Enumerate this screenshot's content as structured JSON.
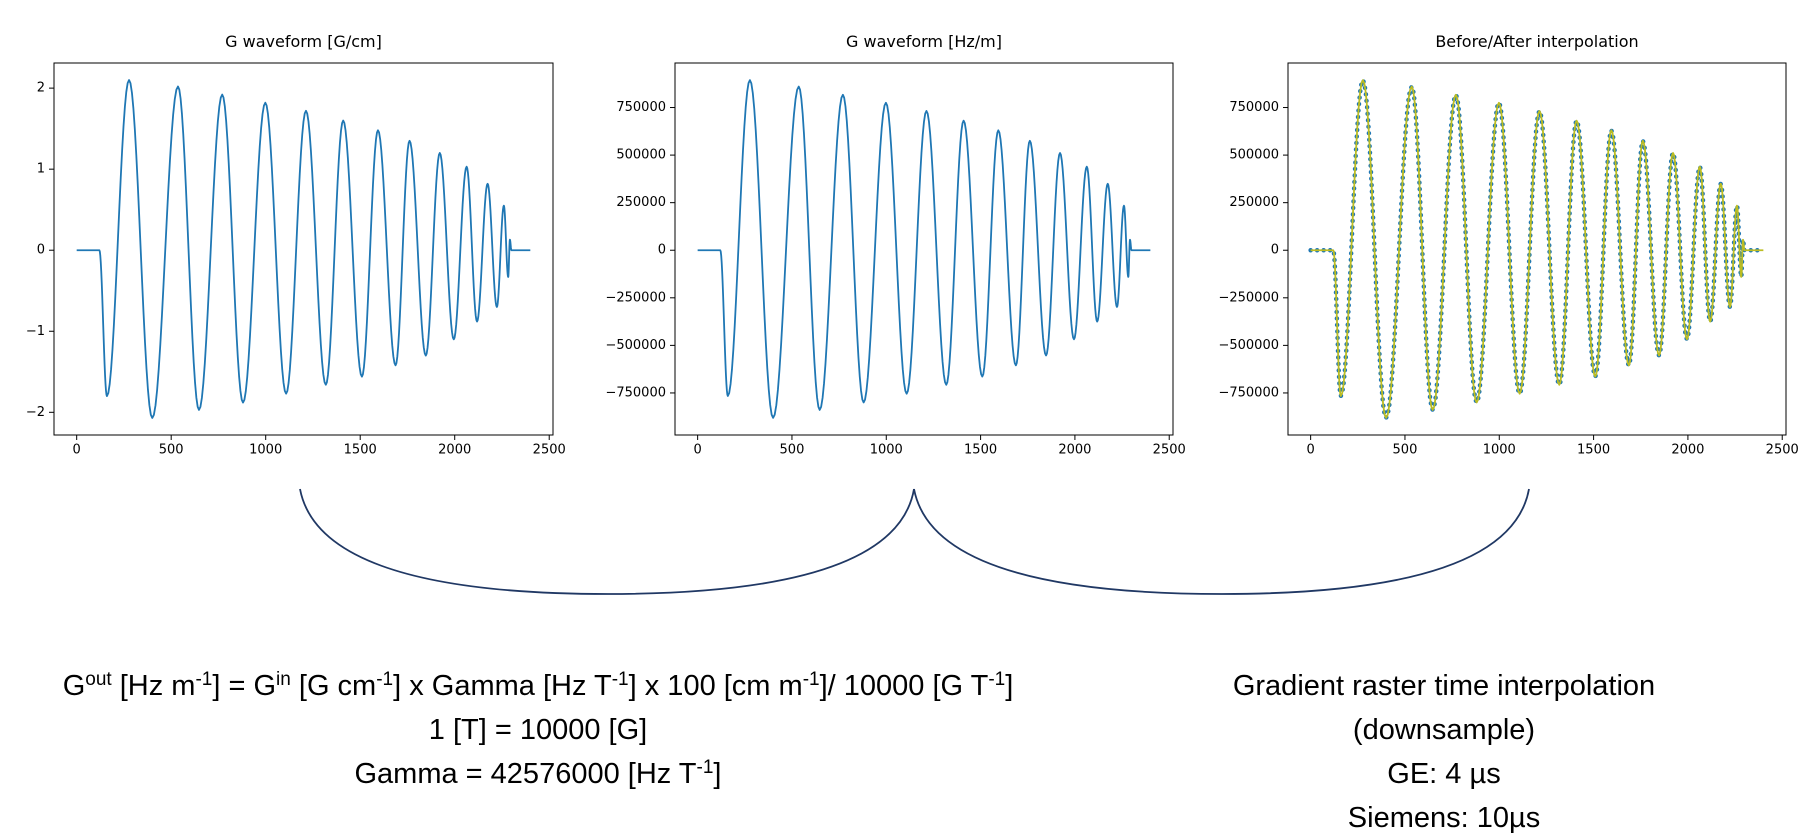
{
  "chart_data": [
    {
      "type": "line",
      "title": "G waveform [G/cm]",
      "color": "#1f77b4",
      "x": [
        0,
        120,
        160,
        277,
        400,
        536,
        647,
        770,
        880,
        998,
        1108,
        1213,
        1318,
        1410,
        1509,
        1594,
        1687,
        1761,
        1847,
        1921,
        1995,
        2063,
        2118,
        2174,
        2223,
        2260,
        2283,
        2292,
        2300,
        2400
      ],
      "values": [
        0,
        0,
        -1.8,
        2.1,
        -2.07,
        2.02,
        -1.97,
        1.92,
        -1.88,
        1.82,
        -1.77,
        1.72,
        -1.66,
        1.6,
        -1.56,
        1.48,
        -1.42,
        1.35,
        -1.3,
        1.2,
        -1.1,
        1.03,
        -0.88,
        0.82,
        -0.7,
        0.55,
        -0.33,
        0.13,
        0,
        0
      ],
      "xlim": [
        -120,
        2520
      ],
      "xticks": [
        0,
        500,
        1000,
        1500,
        2000,
        2500
      ],
      "ylim": [
        -2.28,
        2.31
      ],
      "yticks": [
        {
          "value": -2,
          "label": "−2"
        },
        {
          "value": -1,
          "label": "−1"
        },
        0,
        1,
        2
      ]
    },
    {
      "type": "line",
      "title": "G waveform [Hz/m]",
      "color": "#1f77b4",
      "x": [
        0,
        120,
        160,
        277,
        400,
        536,
        647,
        770,
        880,
        998,
        1108,
        1213,
        1318,
        1410,
        1509,
        1594,
        1687,
        1761,
        1847,
        1921,
        1995,
        2063,
        2118,
        2174,
        2223,
        2260,
        2283,
        2292,
        2300,
        2400
      ],
      "values": [
        0,
        0,
        -766000,
        894000,
        -881000,
        860000,
        -839000,
        817000,
        -800000,
        775000,
        -754000,
        732000,
        -707000,
        681000,
        -664000,
        630000,
        -605000,
        575000,
        -553000,
        511000,
        -468000,
        439000,
        -375000,
        349000,
        -298000,
        234000,
        -140000,
        55000,
        0,
        0
      ],
      "xlim": [
        -120,
        2520
      ],
      "xticks": [
        0,
        500,
        1000,
        1500,
        2000,
        2500
      ],
      "ylim": [
        -971000,
        984000
      ],
      "yticks": [
        {
          "value": -750000,
          "label": "−750000"
        },
        {
          "value": -500000,
          "label": "−500000"
        },
        {
          "value": -250000,
          "label": "−250000"
        },
        0,
        250000,
        500000,
        750000
      ]
    },
    {
      "type": "line",
      "title": "Before/After interpolation",
      "x": [
        0,
        120,
        160,
        277,
        400,
        536,
        647,
        770,
        880,
        998,
        1108,
        1213,
        1318,
        1410,
        1509,
        1594,
        1687,
        1761,
        1847,
        1921,
        1995,
        2063,
        2118,
        2174,
        2223,
        2260,
        2283,
        2292,
        2300,
        2400
      ],
      "series": [
        {
          "color": "#1f77b4",
          "linestyle": "dotted",
          "values": [
            0,
            0,
            -766000,
            894000,
            -881000,
            860000,
            -839000,
            817000,
            -800000,
            775000,
            -754000,
            732000,
            -707000,
            681000,
            -664000,
            630000,
            -605000,
            575000,
            -553000,
            511000,
            -468000,
            439000,
            -375000,
            349000,
            -298000,
            234000,
            -140000,
            55000,
            0,
            0
          ]
        },
        {
          "color": "#bcbd22",
          "linestyle": "solid",
          "values": [
            0,
            0,
            -766000,
            894000,
            -881000,
            860000,
            -839000,
            817000,
            -800000,
            775000,
            -754000,
            732000,
            -707000,
            681000,
            -664000,
            630000,
            -605000,
            575000,
            -553000,
            511000,
            -468000,
            439000,
            -375000,
            349000,
            -298000,
            234000,
            -140000,
            55000,
            0,
            0
          ]
        }
      ],
      "xlim": [
        -120,
        2520
      ],
      "xticks": [
        0,
        500,
        1000,
        1500,
        2000,
        2500
      ],
      "ylim": [
        -971000,
        984000
      ],
      "yticks": [
        {
          "value": -750000,
          "label": "−750000"
        },
        {
          "value": -500000,
          "label": "−500000"
        },
        {
          "value": -250000,
          "label": "−250000"
        },
        0,
        250000,
        500000,
        750000
      ]
    }
  ],
  "formula": {
    "line1": [
      "G",
      "out",
      " [Hz m",
      "-1",
      "] = G",
      "in",
      " [G cm",
      "-1",
      "] x Gamma [Hz T",
      "-1",
      "] x 100 [cm m",
      "-1",
      "]/ 10000 [G T",
      "-1",
      "]"
    ],
    "line2": "1 [T] = 10000 [G]",
    "line3": [
      "Gamma = 42576000 [Hz T",
      "-1",
      "]"
    ]
  },
  "interpolation": {
    "lines": [
      "Gradient raster time interpolation",
      "(downsample)",
      "GE: 4 µs",
      "Siemens: 10µs"
    ]
  }
}
